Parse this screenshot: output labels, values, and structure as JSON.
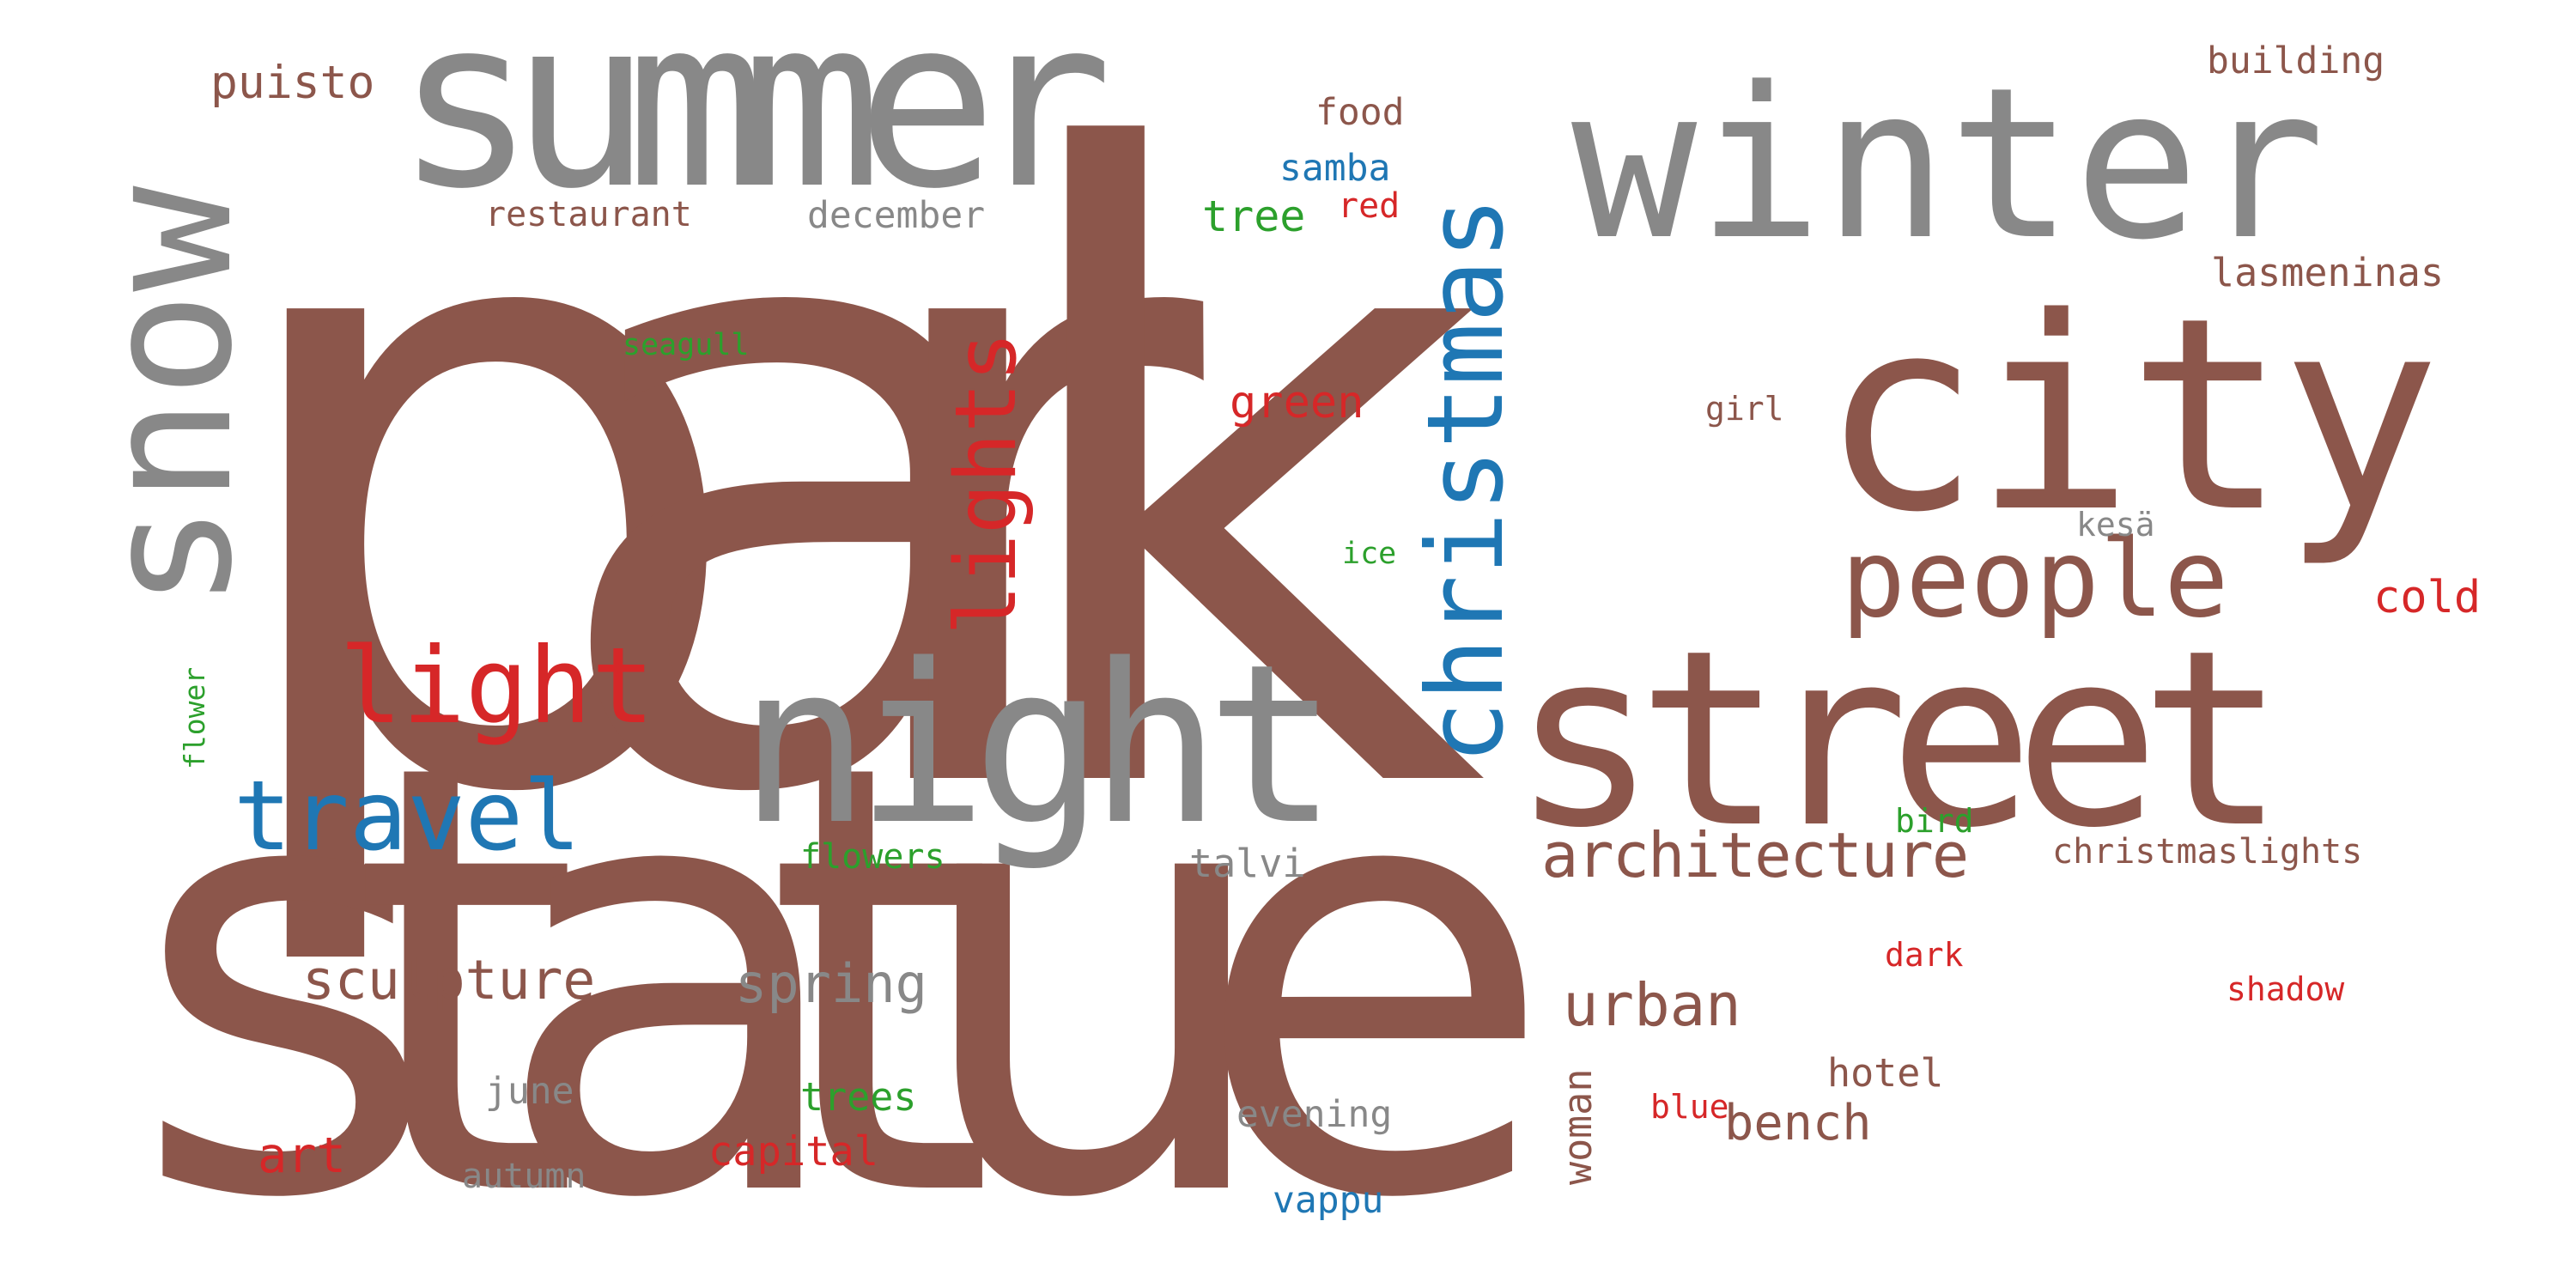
{
  "colors": {
    "brown": "#8c564b",
    "gray": "#888888",
    "blue": "#1f77b4",
    "red": "#d62728",
    "green": "#2ca02c"
  },
  "words": [
    {
      "text": "park",
      "color": "brown"
    },
    {
      "text": "statue",
      "color": "brown"
    },
    {
      "text": "summer",
      "color": "gray"
    },
    {
      "text": "winter",
      "color": "gray"
    },
    {
      "text": "snow",
      "color": "gray"
    },
    {
      "text": "city",
      "color": "brown"
    },
    {
      "text": "street",
      "color": "brown"
    },
    {
      "text": "night",
      "color": "gray"
    },
    {
      "text": "christmas",
      "color": "blue"
    },
    {
      "text": "lights",
      "color": "red"
    },
    {
      "text": "light",
      "color": "red"
    },
    {
      "text": "people",
      "color": "brown"
    },
    {
      "text": "travel",
      "color": "blue"
    },
    {
      "text": "architecture",
      "color": "brown"
    },
    {
      "text": "sculpture",
      "color": "brown"
    },
    {
      "text": "urban",
      "color": "brown"
    },
    {
      "text": "spring",
      "color": "gray"
    },
    {
      "text": "bench",
      "color": "brown"
    },
    {
      "text": "green",
      "color": "red"
    },
    {
      "text": "tree",
      "color": "green"
    },
    {
      "text": "samba",
      "color": "blue"
    },
    {
      "text": "food",
      "color": "brown"
    },
    {
      "text": "red",
      "color": "red"
    },
    {
      "text": "december",
      "color": "gray"
    },
    {
      "text": "restaurant",
      "color": "brown"
    },
    {
      "text": "puisto",
      "color": "brown"
    },
    {
      "text": "building",
      "color": "brown"
    },
    {
      "text": "lasmeninas",
      "color": "brown"
    },
    {
      "text": "seagull",
      "color": "green"
    },
    {
      "text": "girl",
      "color": "brown"
    },
    {
      "text": "kesä",
      "color": "gray"
    },
    {
      "text": "ice",
      "color": "green"
    },
    {
      "text": "cold",
      "color": "red"
    },
    {
      "text": "flower",
      "color": "green"
    },
    {
      "text": "flowers",
      "color": "green"
    },
    {
      "text": "talvi",
      "color": "gray"
    },
    {
      "text": "bird",
      "color": "green"
    },
    {
      "text": "christmaslights",
      "color": "brown"
    },
    {
      "text": "dark",
      "color": "red"
    },
    {
      "text": "shadow",
      "color": "red"
    },
    {
      "text": "hotel",
      "color": "brown"
    },
    {
      "text": "woman",
      "color": "brown"
    },
    {
      "text": "blue",
      "color": "red"
    },
    {
      "text": "evening",
      "color": "gray"
    },
    {
      "text": "trees",
      "color": "green"
    },
    {
      "text": "june",
      "color": "gray"
    },
    {
      "text": "art",
      "color": "red"
    },
    {
      "text": "capital",
      "color": "red"
    },
    {
      "text": "autumn",
      "color": "gray"
    },
    {
      "text": "vappu",
      "color": "blue"
    }
  ]
}
